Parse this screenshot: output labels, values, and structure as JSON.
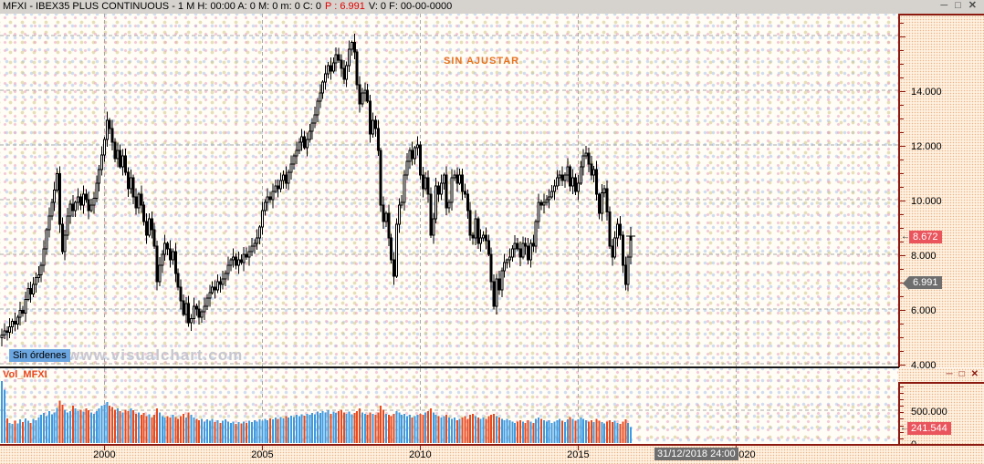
{
  "colors": {
    "axis_red": "#8c1a10",
    "grid": "#a9a9a9",
    "candle": "#000000",
    "vol_up": "#3d9ae1",
    "vol_down": "#e8491d",
    "badge_red": "#e9545d",
    "badge_gray": "#6e6e6e",
    "title_price_red": "#e00000",
    "overlay_orange": "#e8731e",
    "orders_chip_blue": "#6ca6e0",
    "watermark_gray": "#c7c7d1"
  },
  "icons": {
    "minimize": "─",
    "maximize": "□",
    "close": "✕"
  },
  "titlebar": {
    "text": "MFXI - IBEX35 PLUS CONTINUOUS - 1 M H: 00:00 A: 0 M: 0 m: 0 C: 0",
    "price_text": "P : 6.991",
    "suffix": "V: 0 F: 00-00-0000"
  },
  "main_panel": {
    "overlay_label": "SIN AJUSTAR",
    "orders_label": "Sin órdenes",
    "watermark": "www.visualchart.com"
  },
  "volume_panel": {
    "indicator_label": "Vol_MFXI"
  },
  "chart_data": {
    "type": "candlestick+volume",
    "title": "MFXI - IBEX35 PLUS CONTINUOUS",
    "interval": "1M",
    "start": "1996-10",
    "first_open": 4950,
    "closes": [
      5050,
      5200,
      5150,
      5350,
      5550,
      5450,
      5700,
      5950,
      5850,
      6350,
      6750,
      6550,
      6900,
      7150,
      7255,
      7600,
      8200,
      8900,
      9400,
      9900,
      10350,
      10950,
      9100,
      8100,
      8700,
      9400,
      9840,
      9600,
      9900,
      10100,
      9800,
      10200,
      10000,
      9600,
      9800,
      10050,
      10600,
      11100,
      11640,
      12200,
      12900,
      12600,
      12100,
      11500,
      11800,
      11200,
      11600,
      11000,
      10400,
      10800,
      10100,
      9700,
      10200,
      9800,
      9200,
      8700,
      9300,
      8900,
      8300,
      7000,
      7600,
      8000,
      8400,
      8200,
      7800,
      8100,
      7300,
      6800,
      6300,
      5800,
      6200,
      5500,
      5650,
      6100,
      6000,
      5700,
      5900,
      6100,
      6400,
      6600,
      6800,
      6700,
      7000,
      6900,
      7100,
      7300,
      7600,
      7800,
      7900,
      7600,
      7800,
      7700,
      8000,
      7900,
      8100,
      8300,
      8400,
      8600,
      9000,
      9600,
      9900,
      10100,
      10000,
      10300,
      10500,
      10400,
      10700,
      10900,
      10600,
      11000,
      11300,
      11600,
      11800,
      12100,
      12300,
      11900,
      12200,
      12500,
      12800,
      13100,
      13600,
      13900,
      14300,
      14600,
      14900,
      14700,
      15000,
      15300,
      15100,
      14800,
      14400,
      14900,
      15500,
      15750,
      15400,
      14200,
      13500,
      13900,
      14000,
      13600,
      12400,
      12900,
      12600,
      11800,
      9800,
      9200,
      9500,
      8600,
      7800,
      7200,
      9100,
      9800,
      9900,
      10900,
      11400,
      11800,
      11500,
      11900,
      12000,
      10900,
      10400,
      10800,
      10200,
      8700,
      9300,
      10500,
      10200,
      10600,
      10900,
      9700,
      9900,
      10800,
      10900,
      10600,
      10900,
      10300,
      10200,
      9600,
      8700,
      8600,
      9300,
      8400,
      8600,
      8700,
      8500,
      8000,
      7000,
      6100,
      7100,
      6700,
      7400,
      7700,
      7800,
      7900,
      8200,
      8400,
      8200,
      7900,
      8400,
      8300,
      7800,
      8400,
      8300,
      9200,
      9900,
      9800,
      9900,
      10000,
      10100,
      10300,
      10500,
      10800,
      10900,
      10700,
      10900,
      11200,
      10500,
      10800,
      10300,
      10600,
      11200,
      11600,
      11700,
      11300,
      10900,
      11100,
      10200,
      9500,
      10250,
      10400,
      9550,
      8300,
      7900,
      8600,
      9100,
      8700,
      7600,
      6900,
      7900,
      8672
    ],
    "volumes_k": [
      950,
      820,
      380,
      310,
      290,
      340,
      300,
      360,
      320,
      380,
      340,
      310,
      370,
      350,
      390,
      430,
      460,
      410,
      490,
      440,
      470,
      540,
      650,
      590,
      510,
      470,
      490,
      570,
      530,
      490,
      510,
      480,
      530,
      500,
      470,
      450,
      490,
      530,
      570,
      590,
      630,
      570,
      550,
      510,
      530,
      490,
      470,
      510,
      490,
      530,
      500,
      450,
      470,
      430,
      460,
      410,
      440,
      390,
      430,
      530,
      470,
      410,
      390,
      410,
      390,
      430,
      400,
      370,
      410,
      450,
      390,
      470,
      430,
      390,
      370,
      350,
      370,
      330,
      360,
      340,
      370,
      320,
      350,
      310,
      340,
      360,
      330,
      310,
      330,
      290,
      320,
      300,
      330,
      310,
      340,
      320,
      350,
      330,
      360,
      340,
      370,
      350,
      380,
      360,
      390,
      370,
      400,
      380,
      410,
      390,
      420,
      400,
      430,
      410,
      440,
      420,
      450,
      430,
      460,
      440,
      480,
      460,
      490,
      470,
      500,
      450,
      480,
      460,
      490,
      510,
      470,
      450,
      480,
      440,
      460,
      490,
      530,
      470,
      450,
      430,
      470,
      450,
      430,
      470,
      570,
      510,
      450,
      430,
      410,
      450,
      490,
      470,
      430,
      450,
      410,
      430,
      390,
      410,
      430,
      450,
      430,
      470,
      490,
      530,
      470,
      430,
      410,
      390,
      410,
      430,
      390,
      370,
      390,
      350,
      370,
      390,
      410,
      370,
      430,
      450,
      410,
      390,
      370,
      390,
      370,
      410,
      430,
      450,
      410,
      390,
      370,
      350,
      370,
      350,
      330,
      310,
      330,
      350,
      330,
      310,
      350,
      330,
      310,
      370,
      390,
      370,
      350,
      330,
      350,
      310,
      330,
      350,
      370,
      340,
      320,
      360,
      400,
      370,
      340,
      360,
      390,
      370,
      350,
      330,
      350,
      320,
      370,
      340,
      320,
      300,
      330,
      350,
      320,
      340,
      310,
      290,
      330,
      360,
      310,
      242
    ],
    "price_axis": {
      "min": 4000,
      "max": 16500,
      "grid_step": 2000,
      "tick_step": 500,
      "labels": [
        {
          "text": "14.000",
          "value": 14000
        },
        {
          "text": "12.000",
          "value": 12000
        },
        {
          "text": "10.000",
          "value": 10000
        },
        {
          "text": "8.000",
          "value": 8000
        },
        {
          "text": "6.000",
          "value": 6000
        },
        {
          "text": "4.000",
          "value": 4000
        }
      ]
    },
    "price_markers": [
      {
        "text": "8.672",
        "value": 8672,
        "style": "red",
        "arrow": "←"
      },
      {
        "text": "6.991",
        "value": 6991,
        "style": "gray"
      }
    ],
    "volume_axis": {
      "grid_value": 500,
      "tick_step": 100,
      "labels": [
        {
          "text": "500.000",
          "value": 500
        },
        {
          "text": "0",
          "value": 0
        }
      ],
      "marker": {
        "text": "241.544",
        "value": 241.5,
        "arrow": "←"
      }
    },
    "time_axis": {
      "year_labels": [
        {
          "text": "2000",
          "year": 2000,
          "offset": 0
        },
        {
          "text": "2005",
          "year": 2005,
          "offset": 0
        },
        {
          "text": "2010",
          "year": 2010,
          "offset": 0
        },
        {
          "text": "2015",
          "year": 2015,
          "offset": 0
        },
        {
          "text": "2020",
          "year": 2020,
          "offset": 9
        }
      ],
      "cursor_badge": "31/12/2018 24:00"
    },
    "cursor_cross": {
      "bar_index": 239,
      "price": 8672
    }
  }
}
